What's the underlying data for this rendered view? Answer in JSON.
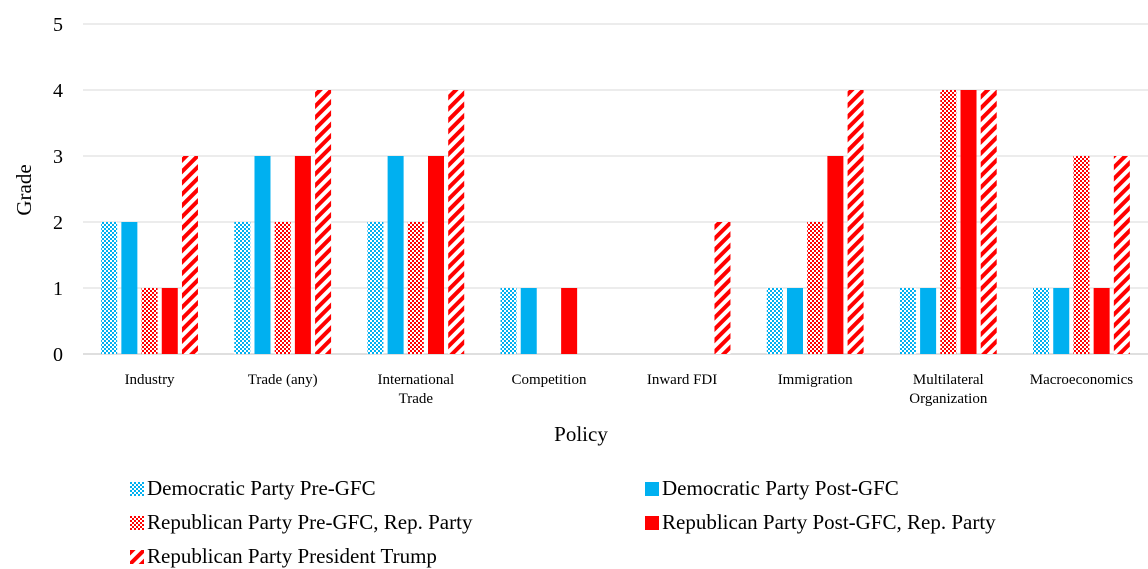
{
  "chart_data": {
    "type": "bar",
    "title": "",
    "xlabel": "Policy",
    "ylabel": "Grade",
    "ylim": [
      0,
      5
    ],
    "yticks": [
      0,
      1,
      2,
      3,
      4,
      5
    ],
    "grid": true,
    "legend_position": "bottom",
    "categories": [
      "Industry",
      "Trade (any)",
      "International\nTrade",
      "Competition",
      "Inward FDI",
      "Immigration",
      "Multilateral\nOrganization",
      "Macroeconomics"
    ],
    "series": [
      {
        "name": "Democratic Party Pre-GFC",
        "color": "#00b0f0",
        "pattern": "dots",
        "values": [
          2,
          2,
          2,
          1,
          0,
          1,
          1,
          1
        ]
      },
      {
        "name": "Democratic Party Post-GFC",
        "color": "#00b0f0",
        "pattern": "solid",
        "values": [
          2,
          3,
          3,
          1,
          0,
          1,
          1,
          1
        ]
      },
      {
        "name": "Republican Party Pre-GFC, Rep. Party",
        "color": "#ff0000",
        "pattern": "dots",
        "values": [
          1,
          2,
          2,
          0,
          0,
          2,
          4,
          3
        ]
      },
      {
        "name": "Republican Party Post-GFC, Rep. Party",
        "color": "#ff0000",
        "pattern": "solid",
        "values": [
          1,
          3,
          3,
          1,
          0,
          3,
          4,
          1
        ]
      },
      {
        "name": "Republican Party President Trump",
        "color": "#ff0000",
        "pattern": "stripes",
        "values": [
          3,
          4,
          4,
          0,
          2,
          4,
          4,
          3
        ]
      }
    ]
  }
}
